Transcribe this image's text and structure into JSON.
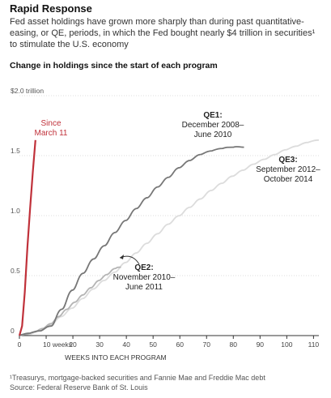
{
  "header": {
    "title": "Rapid Response",
    "subtitle": "Fed asset holdings have grown more sharply than during past quantitative-easing, or QE, periods, in which the Fed bought nearly $4 trillion in securities¹ to stimulate the U.S. economy",
    "chart_heading": "Change in holdings since the start of each program"
  },
  "footer": {
    "note": "¹Treasurys, mortgage-backed securities and Fannie Mae and Freddie Mac debt",
    "source": "Source: Federal Reserve Bank of St. Louis"
  },
  "chart_data": {
    "type": "line",
    "xlabel": "WEEKS INTO EACH PROGRAM",
    "ylabel": "",
    "xlim": [
      0,
      112
    ],
    "ylim": [
      0,
      2.0
    ],
    "x_ticks": [
      {
        "value": 0,
        "label": "0"
      },
      {
        "value": 10,
        "label": "10 weeks"
      },
      {
        "value": 20,
        "label": "20"
      },
      {
        "value": 30,
        "label": "30"
      },
      {
        "value": 40,
        "label": "40"
      },
      {
        "value": 50,
        "label": "50"
      },
      {
        "value": 60,
        "label": "60"
      },
      {
        "value": 70,
        "label": "70"
      },
      {
        "value": 80,
        "label": "80"
      },
      {
        "value": 90,
        "label": "90"
      },
      {
        "value": 100,
        "label": "100"
      },
      {
        "value": 110,
        "label": "110"
      }
    ],
    "y_ticks": [
      {
        "value": 0,
        "label": "0"
      },
      {
        "value": 0.5,
        "label": "0.5"
      },
      {
        "value": 1.0,
        "label": "1.0"
      },
      {
        "value": 1.5,
        "label": "1.5"
      },
      {
        "value": 2.0,
        "label": "$2.0 trillion"
      }
    ],
    "grid": "horizontal",
    "series": [
      {
        "name": "QE3",
        "label_lines": [
          "QE3:",
          "September 2012–",
          "October 2014"
        ],
        "color": "#dcdcdc",
        "x": [
          0,
          4,
          8,
          12,
          16,
          20,
          24,
          28,
          32,
          36,
          40,
          44,
          48,
          52,
          56,
          60,
          64,
          68,
          72,
          76,
          80,
          84,
          88,
          92,
          96,
          100,
          104,
          108,
          112
        ],
        "y": [
          0,
          0.01,
          0.04,
          0.09,
          0.16,
          0.23,
          0.31,
          0.39,
          0.46,
          0.53,
          0.61,
          0.69,
          0.77,
          0.85,
          0.93,
          1.0,
          1.07,
          1.14,
          1.21,
          1.27,
          1.33,
          1.38,
          1.43,
          1.47,
          1.51,
          1.55,
          1.58,
          1.61,
          1.63
        ]
      },
      {
        "name": "QE2",
        "label_lines": [
          "QE2:",
          "November 2010–",
          "June 2011"
        ],
        "color": "#b4b4b4",
        "x": [
          0,
          3,
          6,
          9,
          12,
          15,
          18,
          21,
          24,
          27,
          30,
          33,
          36,
          38
        ],
        "y": [
          0,
          0.01,
          0.03,
          0.06,
          0.1,
          0.16,
          0.22,
          0.28,
          0.34,
          0.4,
          0.46,
          0.51,
          0.56,
          0.57
        ]
      },
      {
        "name": "QE1",
        "label_lines": [
          "QE1:",
          "December 2008–",
          "June 2010"
        ],
        "color": "#777777",
        "x": [
          0,
          4,
          8,
          12,
          16,
          20,
          24,
          28,
          32,
          36,
          40,
          44,
          48,
          52,
          56,
          60,
          64,
          68,
          72,
          76,
          80,
          84
        ],
        "y": [
          0,
          0.02,
          0.04,
          0.08,
          0.22,
          0.38,
          0.52,
          0.64,
          0.75,
          0.86,
          0.96,
          1.06,
          1.15,
          1.24,
          1.32,
          1.4,
          1.46,
          1.51,
          1.54,
          1.56,
          1.57,
          1.57
        ]
      },
      {
        "name": "Since March 11",
        "label_lines": [
          "Since",
          "March 11"
        ],
        "color": "#c0313a",
        "x": [
          0,
          1,
          2,
          3,
          4,
          5,
          6
        ],
        "y": [
          0,
          0.08,
          0.36,
          0.74,
          1.06,
          1.36,
          1.63
        ]
      }
    ]
  }
}
